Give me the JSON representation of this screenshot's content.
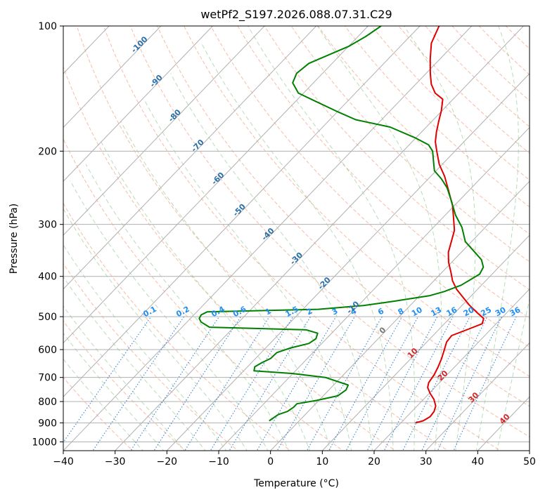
{
  "chart_data": {
    "type": "line",
    "title": "wetPf2_S197.2026.088.07.31.C29",
    "xlabel": "Temperature (°C)",
    "ylabel": "Pressure (hPa)",
    "xlim": [
      -40,
      50
    ],
    "ylim": [
      1050,
      100
    ],
    "y_scale": "log",
    "skew": true,
    "grid": true,
    "x_ticks": [
      -40,
      -30,
      -20,
      -10,
      0,
      10,
      20,
      30,
      40,
      50
    ],
    "y_ticks": [
      100,
      200,
      300,
      400,
      500,
      600,
      700,
      800,
      900,
      1000
    ],
    "series": [
      {
        "role": "temperature",
        "color": "#e00000",
        "points": [
          [
            22.8,
            900
          ],
          [
            23.9,
            890
          ],
          [
            24.5,
            870
          ],
          [
            24.3,
            845
          ],
          [
            23.6,
            820
          ],
          [
            22.0,
            790
          ],
          [
            20.2,
            765
          ],
          [
            18.6,
            740
          ],
          [
            17.9,
            720
          ],
          [
            17.5,
            690
          ],
          [
            16.8,
            660
          ],
          [
            15.9,
            630
          ],
          [
            14.8,
            600
          ],
          [
            13.8,
            575
          ],
          [
            13.6,
            555
          ],
          [
            15.5,
            537
          ],
          [
            17.3,
            520
          ],
          [
            16.6,
            505
          ],
          [
            14.4,
            490
          ],
          [
            11.5,
            470
          ],
          [
            8.8,
            450
          ],
          [
            6.0,
            430
          ],
          [
            3.6,
            410
          ],
          [
            1.6,
            390
          ],
          [
            -0.6,
            370
          ],
          [
            -2.5,
            350
          ],
          [
            -3.9,
            330
          ],
          [
            -5.4,
            310
          ],
          [
            -7.8,
            290
          ],
          [
            -10.4,
            270
          ],
          [
            -13.7,
            250
          ],
          [
            -17.3,
            230
          ],
          [
            -20.6,
            215
          ],
          [
            -23.5,
            200
          ],
          [
            -25.5,
            190
          ],
          [
            -27.1,
            180
          ],
          [
            -28.6,
            170
          ],
          [
            -30.1,
            160
          ],
          [
            -32.0,
            150
          ],
          [
            -34.6,
            145
          ],
          [
            -37.0,
            138
          ],
          [
            -39.2,
            130
          ],
          [
            -41.9,
            120
          ],
          [
            -44.6,
            110
          ],
          [
            -46.3,
            100
          ]
        ]
      },
      {
        "role": "dewpoint",
        "color": "#008000",
        "points": [
          [
            -5.8,
            890
          ],
          [
            -5.6,
            880
          ],
          [
            -5.2,
            860
          ],
          [
            -4.0,
            845
          ],
          [
            -3.6,
            825
          ],
          [
            -3.6,
            810
          ],
          [
            -0.4,
            795
          ],
          [
            2.8,
            775
          ],
          [
            3.3,
            750
          ],
          [
            2.8,
            730
          ],
          [
            -3.0,
            700
          ],
          [
            -10.0,
            685
          ],
          [
            -18.0,
            675
          ],
          [
            -18.6,
            660
          ],
          [
            -18.0,
            645
          ],
          [
            -17.1,
            630
          ],
          [
            -17.0,
            610
          ],
          [
            -15.3,
            595
          ],
          [
            -12.5,
            580
          ],
          [
            -12.0,
            565
          ],
          [
            -12.7,
            548
          ],
          [
            -15.5,
            538
          ],
          [
            -34.7,
            530
          ],
          [
            -37.3,
            515
          ],
          [
            -38.3,
            505
          ],
          [
            -38.6,
            495
          ],
          [
            -38.0,
            487
          ],
          [
            -17.0,
            480
          ],
          [
            -9.0,
            470
          ],
          [
            -4.3,
            460
          ],
          [
            2.0,
            445
          ],
          [
            4.0,
            435
          ],
          [
            6.1,
            420
          ],
          [
            7.6,
            395
          ],
          [
            7.0,
            380
          ],
          [
            5.3,
            365
          ],
          [
            2.6,
            350
          ],
          [
            -1.2,
            330
          ],
          [
            -4.5,
            305
          ],
          [
            -8.0,
            285
          ],
          [
            -11.7,
            262
          ],
          [
            -14.7,
            245
          ],
          [
            -17.5,
            233
          ],
          [
            -20.3,
            223
          ],
          [
            -22.0,
            213
          ],
          [
            -24.3,
            200
          ],
          [
            -26.3,
            193
          ],
          [
            -30.0,
            186
          ],
          [
            -37.0,
            175
          ],
          [
            -45.0,
            168
          ],
          [
            -50.5,
            160
          ],
          [
            -56.0,
            152
          ],
          [
            -61.0,
            145
          ],
          [
            -64.0,
            137
          ],
          [
            -65.0,
            130
          ],
          [
            -64.5,
            123
          ],
          [
            -62.5,
            118
          ],
          [
            -60.0,
            112
          ],
          [
            -58.5,
            106
          ],
          [
            -57.5,
            100
          ]
        ]
      }
    ],
    "isotherm_labels": [
      {
        "t": -100,
        "p": 112,
        "text": "-100"
      },
      {
        "t": -90,
        "p": 137,
        "text": "-90"
      },
      {
        "t": -80,
        "p": 166,
        "text": "-80"
      },
      {
        "t": -70,
        "p": 196,
        "text": "-70"
      },
      {
        "t": -60,
        "p": 235,
        "text": "-60"
      },
      {
        "t": -50,
        "p": 280,
        "text": "-50"
      },
      {
        "t": -40,
        "p": 320,
        "text": "-40"
      },
      {
        "t": -30,
        "p": 366,
        "text": "-30"
      },
      {
        "t": -20,
        "p": 420,
        "text": "-20"
      },
      {
        "t": -10,
        "p": 480,
        "text": "-10"
      },
      {
        "t": 0,
        "p": 545,
        "text": "0"
      },
      {
        "t": 10,
        "p": 618,
        "text": "10"
      },
      {
        "t": 20,
        "p": 700,
        "text": "20"
      },
      {
        "t": 30,
        "p": 790,
        "text": "30"
      },
      {
        "t": 40,
        "p": 890,
        "text": "40"
      }
    ],
    "mixing_ratio_labels": [
      "0.1",
      "0.2",
      "0.4",
      "0.6",
      "1",
      "1.5",
      "2",
      "3",
      "4",
      "6",
      "8",
      "10",
      "13",
      "16",
      "20",
      "25",
      "30",
      "36"
    ]
  }
}
